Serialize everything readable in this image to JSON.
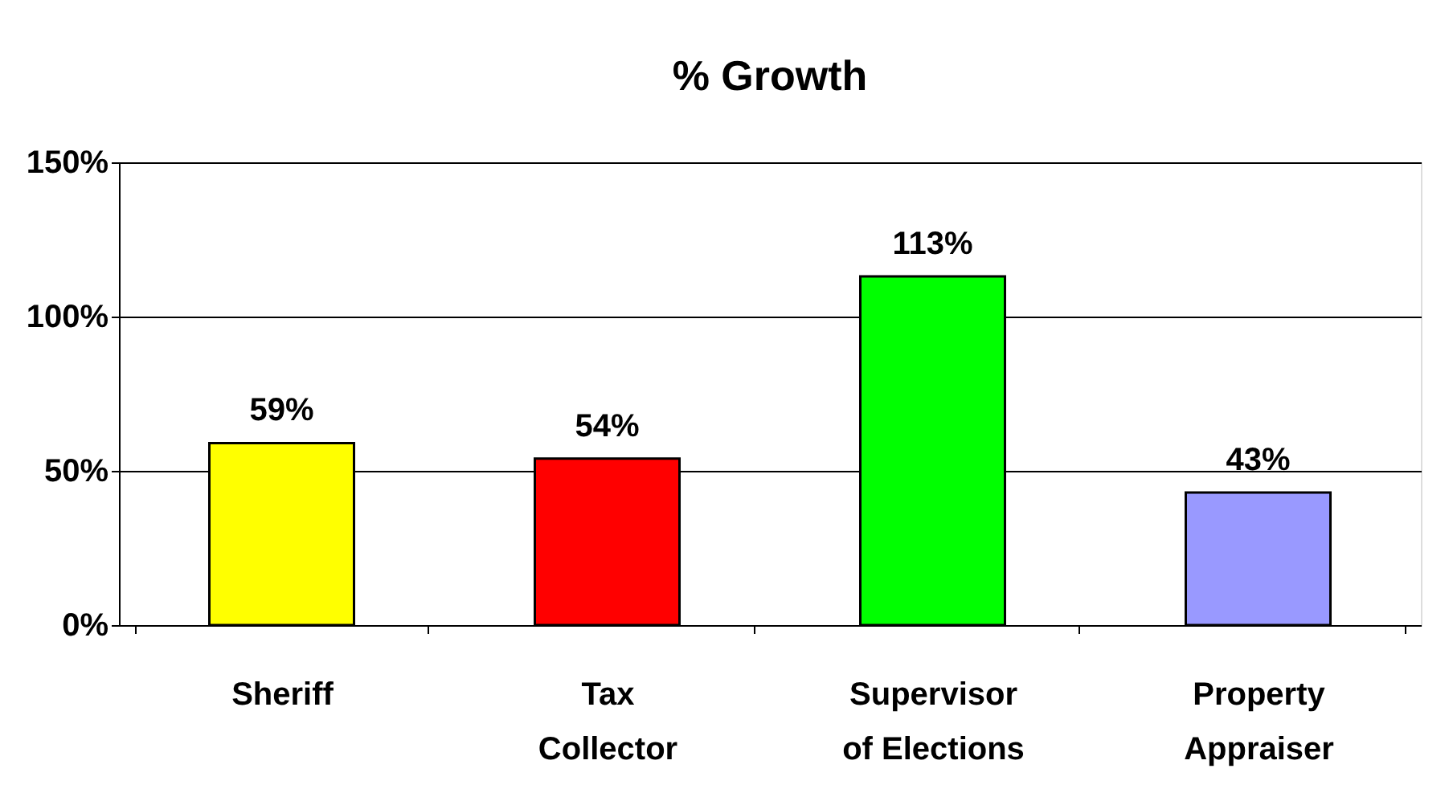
{
  "chart_data": {
    "type": "bar",
    "title": "% Growth",
    "categories": [
      "Sheriff",
      "Tax Collector",
      "Supervisor of Elections",
      "Property Appraiser"
    ],
    "values": [
      59,
      54,
      113,
      43
    ],
    "colors": [
      "#ffff00",
      "#ff0000",
      "#00ff00",
      "#9999ff"
    ],
    "value_labels": [
      "59%",
      "54%",
      "113%",
      "43%"
    ],
    "ylim": [
      0,
      150
    ],
    "yticks": [
      {
        "value": 0,
        "label": "0%"
      },
      {
        "value": 50,
        "label": "50%"
      },
      {
        "value": 100,
        "label": "100%"
      },
      {
        "value": 150,
        "label": "150%"
      }
    ],
    "grid": "y"
  }
}
